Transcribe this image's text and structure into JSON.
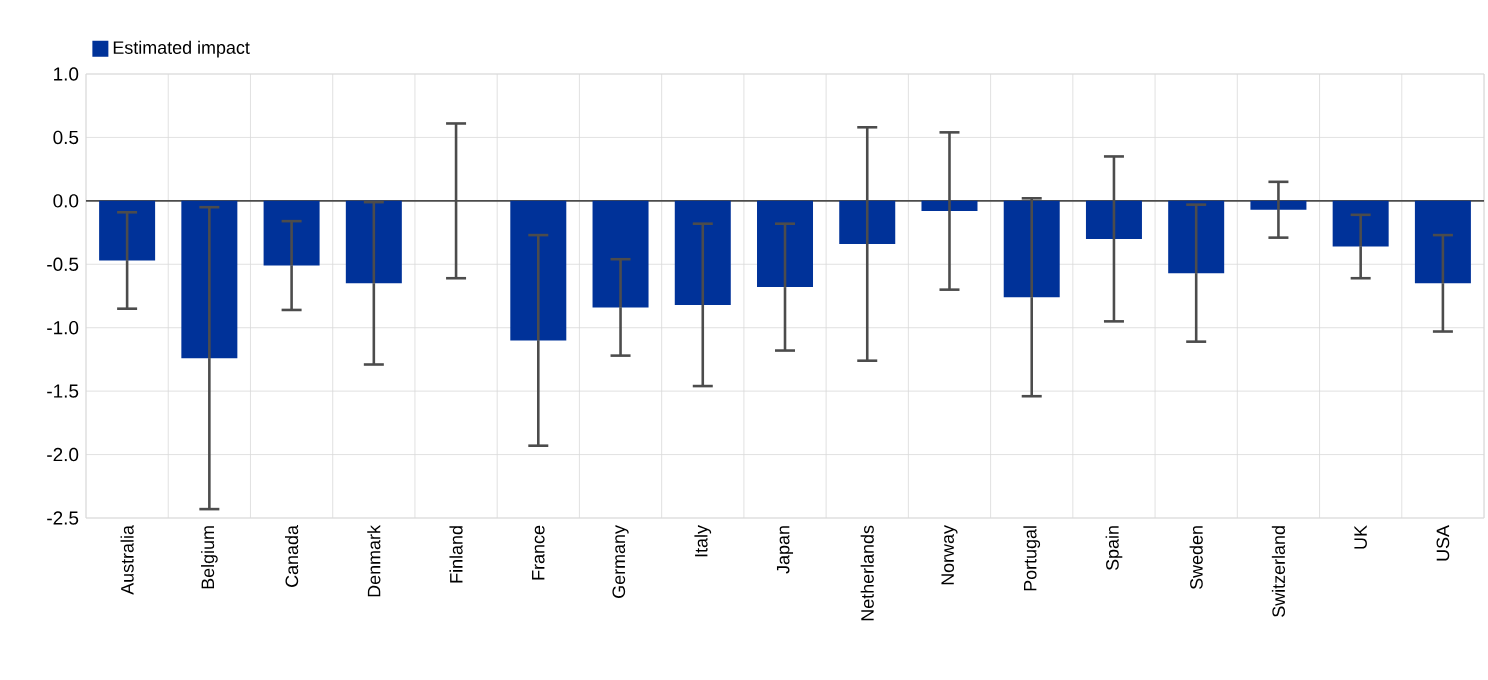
{
  "chart_data": {
    "type": "bar",
    "categories": [
      "Australia",
      "Belgium",
      "Canada",
      "Denmark",
      "Finland",
      "France",
      "Germany",
      "Italy",
      "Japan",
      "Netherlands",
      "Norway",
      "Portugal",
      "Spain",
      "Sweden",
      "Switzerland",
      "UK",
      "USA"
    ],
    "series": [
      {
        "name": "Estimated impact",
        "color": "#003299",
        "values": [
          -0.47,
          -1.24,
          -0.51,
          -0.65,
          0.0,
          -1.1,
          -0.84,
          -0.82,
          -0.68,
          -0.34,
          -0.08,
          -0.76,
          -0.3,
          -0.57,
          -0.07,
          -0.36,
          -0.65
        ],
        "errors": [
          0.38,
          1.19,
          0.35,
          0.64,
          0.61,
          0.83,
          0.38,
          0.64,
          0.5,
          0.92,
          0.62,
          0.78,
          0.65,
          0.54,
          0.22,
          0.25,
          0.38
        ]
      }
    ],
    "ylim": [
      -2.5,
      1.0
    ],
    "yticks": [
      {
        "value": -2.5,
        "label": "-2.5"
      },
      {
        "value": -2.0,
        "label": "-2.0"
      },
      {
        "value": -1.5,
        "label": "-1.5"
      },
      {
        "value": -1.0,
        "label": "-1.0"
      },
      {
        "value": -0.5,
        "label": "-0.5"
      },
      {
        "value": 0.0,
        "label": "0.0"
      },
      {
        "value": 0.5,
        "label": "0.5"
      },
      {
        "value": 1.0,
        "label": "1.0"
      }
    ],
    "grid": true,
    "legend": "top left"
  }
}
